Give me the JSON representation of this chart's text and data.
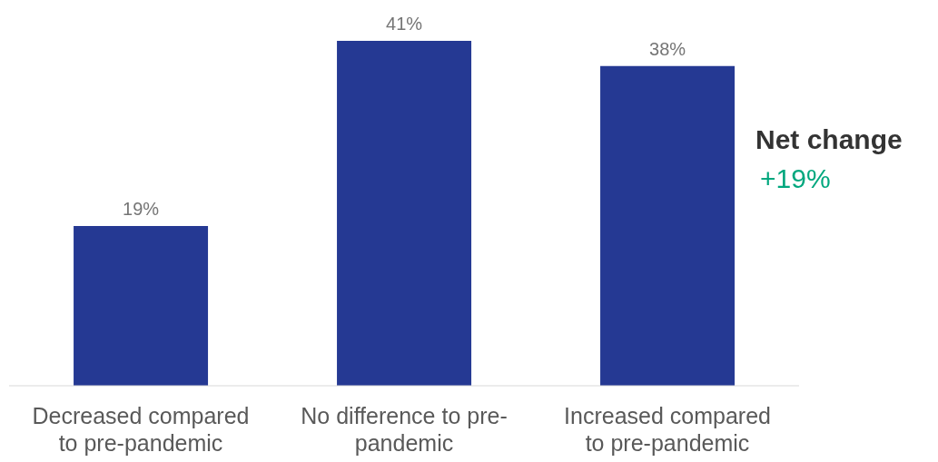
{
  "chart_data": {
    "type": "bar",
    "categories": [
      "Decreased compared to pre-pandemic",
      "No difference to pre-pandemic",
      "Increased compared to pre-pandemic"
    ],
    "values": [
      19,
      41,
      38
    ],
    "color": "#253993",
    "value_labels": [
      "19%",
      "41%",
      "38%"
    ],
    "annotations": [
      "Net change",
      "+19%"
    ]
  }
}
